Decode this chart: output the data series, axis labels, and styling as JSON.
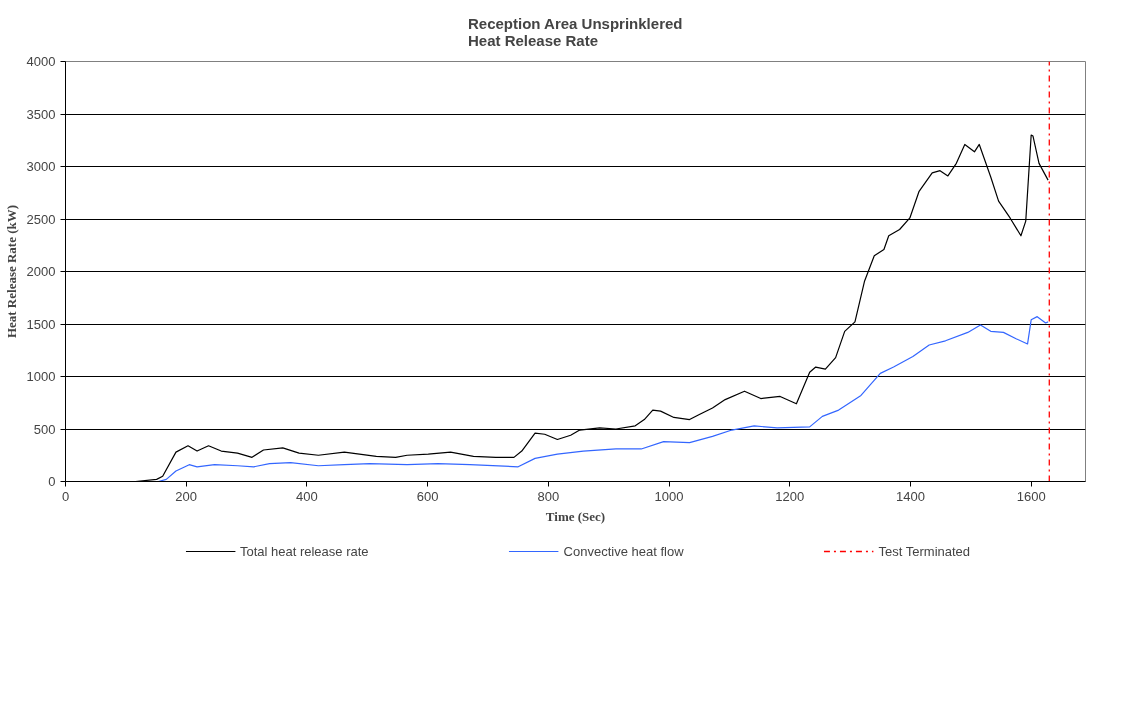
{
  "chart_data": {
    "type": "line",
    "title": "Reception Area Unsprinklered\nHeat Release Rate",
    "xlabel": "Time (Sec)",
    "ylabel": "Heat Release Rate (kW)",
    "xlim": [
      0,
      1690
    ],
    "ylim": [
      0,
      4000
    ],
    "xticks": [
      0,
      200,
      400,
      600,
      800,
      1000,
      1200,
      1400,
      1600
    ],
    "yticks": [
      0,
      500,
      1000,
      1500,
      2000,
      2500,
      3000,
      3500,
      4000
    ],
    "grid": "y",
    "legend": "bottom",
    "line_style": "solid",
    "marker": "none",
    "series": [
      {
        "name": "Total heat release rate",
        "color": "#000000",
        "x": [
          116,
          151,
          161,
          183,
          203,
          218,
          237,
          258,
          285,
          309,
          328,
          360,
          387,
          419,
          462,
          515,
          547,
          566,
          601,
          638,
          676,
          713,
          743,
          756,
          778,
          794,
          815,
          837,
          852,
          885,
          912,
          944,
          959,
          973,
          986,
          1008,
          1034,
          1051,
          1072,
          1093,
          1125,
          1152,
          1184,
          1211,
          1233,
          1243,
          1259,
          1276,
          1291,
          1308,
          1324,
          1340,
          1356,
          1364,
          1382,
          1399,
          1414,
          1436,
          1449,
          1462,
          1476,
          1490,
          1506,
          1514,
          1533,
          1546,
          1565,
          1583,
          1591,
          1600,
          1603,
          1613,
          1628
        ],
        "values": [
          0,
          20,
          50,
          280,
          340,
          290,
          340,
          290,
          270,
          230,
          300,
          320,
          270,
          250,
          280,
          240,
          230,
          250,
          260,
          280,
          240,
          230,
          230,
          290,
          460,
          450,
          400,
          440,
          490,
          510,
          500,
          530,
          590,
          680,
          670,
          610,
          590,
          640,
          700,
          780,
          860,
          790,
          810,
          740,
          1040,
          1090,
          1070,
          1180,
          1430,
          1520,
          1910,
          2150,
          2210,
          2340,
          2400,
          2510,
          2760,
          2940,
          2960,
          2910,
          3030,
          3210,
          3140,
          3210,
          2900,
          2670,
          2510,
          2340,
          2480,
          3300,
          3290,
          3030,
          2870
        ]
      },
      {
        "name": "Convective heat flow",
        "color": "#3366ff",
        "x": [
          154,
          167,
          183,
          205,
          218,
          247,
          285,
          312,
          338,
          373,
          419,
          462,
          504,
          566,
          617,
          670,
          750,
          778,
          815,
          858,
          912,
          954,
          991,
          1034,
          1072,
          1104,
          1141,
          1179,
          1233,
          1254,
          1281,
          1297,
          1318,
          1350,
          1372,
          1404,
          1431,
          1458,
          1495,
          1516,
          1533,
          1554,
          1575,
          1594,
          1600,
          1610,
          1624,
          1628
        ],
        "values": [
          0,
          20,
          100,
          160,
          140,
          160,
          150,
          140,
          170,
          180,
          150,
          160,
          170,
          160,
          170,
          160,
          140,
          220,
          260,
          290,
          310,
          310,
          380,
          370,
          430,
          490,
          530,
          510,
          520,
          620,
          680,
          740,
          820,
          1030,
          1090,
          1190,
          1300,
          1340,
          1420,
          1490,
          1430,
          1420,
          1360,
          1310,
          1540,
          1570,
          1510,
          1520
        ]
      }
    ],
    "ref_lines": [
      {
        "axis": "x",
        "value": 1630,
        "label": "Test Terminated",
        "color": "#ff0000",
        "line_style": "dashed"
      }
    ]
  }
}
